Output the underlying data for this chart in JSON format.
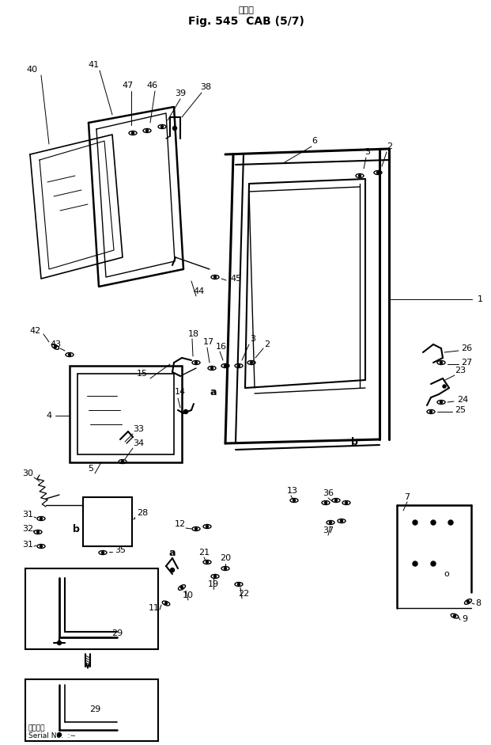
{
  "title_jp": "キャブ",
  "title_en": "Fig. 545  CAB (5/7)",
  "bg_color": "#ffffff",
  "line_color": "#000000",
  "fig_width": 6.21,
  "fig_height": 9.41,
  "dpi": 100,
  "serial_text_jp": "適用号番",
  "serial_text_en": "Serial No.  :∼"
}
